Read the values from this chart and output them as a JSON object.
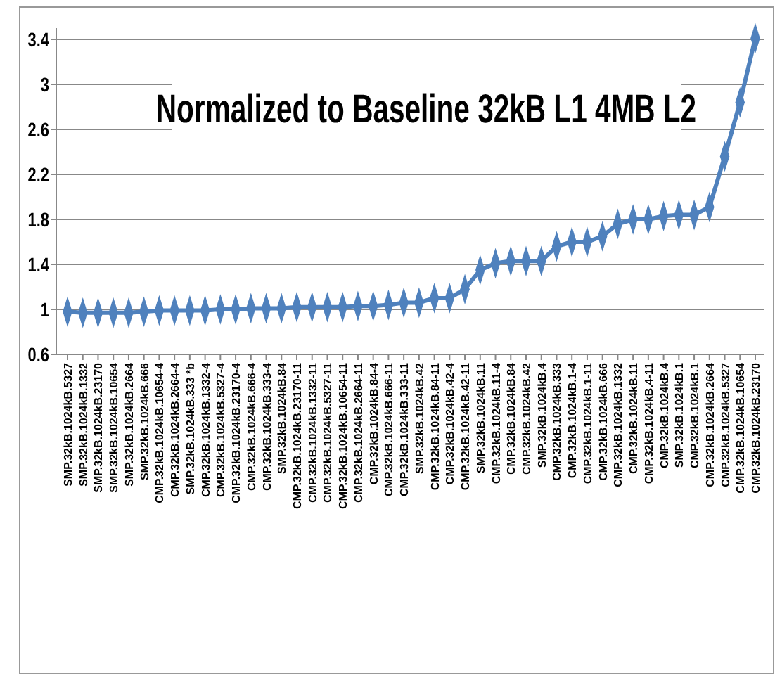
{
  "chart_data": {
    "type": "line",
    "title": "Normalized to Baseline 32kB L1 4MB L2",
    "categories": [
      "SMP.32kB.1024kB.5327",
      "SMP.32kB.1024kB.1332",
      "SMP.32kB.1024kB.23170",
      "SMP.32kB.1024kB.10654",
      "SMP.32kB.1024kB.2664",
      "SMP.32kB.1024kB.666",
      "CMP.32kB.1024kB.10654-4",
      "CMP.32kB.1024kB.2664-4",
      "SMP.32kB.1024kB.333 *b",
      "CMP.32kB.1024kB.1332-4",
      "CMP.32kB.1024kB.5327-4",
      "CMP.32kB.1024kB.23170-4",
      "CMP.32kB.1024kB.666-4",
      "CMP.32kB.1024kB.333-4",
      "SMP.32kB.1024kB.84",
      "CMP.32kB.1024kB.23170-11",
      "CMP.32kB.1024kB.1332-11",
      "CMP.32kB.1024kB.5327-11",
      "CMP.32kB.1024kB.10654-11",
      "CMP.32kB.1024kB.2664-11",
      "CMP.32kB.1024kB.84-4",
      "CMP.32kB.1024kB.666-11",
      "CMP.32kB.1024kB.333-11",
      "SMP.32kB.1024kB.42",
      "CMP.32kB.1024kB.84-11",
      "CMP.32kB.1024kB.42-4",
      "CMP.32kB.1024kB.42-11",
      "SMP.32kB.1024kB.11",
      "CMP.32kB.1024kB.11-4",
      "CMP.32kB.1024kB.84",
      "CMP.32kB.1024kB.42",
      "SMP.32kB.1024kB.4",
      "CMP.32kB.1024kB.333",
      "CMP.32kB.1024kB.1-4",
      "CMP.32kB.1024kB.1-11",
      "CMP.32kB.1024kB.666",
      "CMP.32kB.1024kB.1332",
      "CMP.32kB.1024kB.11",
      "CMP.32kB.1024kB.4-11",
      "CMP.32kB.1024kB.4",
      "SMP.32kB.1024kB.1",
      "CMP.32kB.1024kB.1",
      "CMP.32kB.1024kB.2664",
      "CMP.32kB.1024kB.5327",
      "CMP.32kB.1024kB.10654",
      "CMP.32kB.1024kB.23170"
    ],
    "series": [
      {
        "color": "#4f81bd",
        "values": [
          0.98,
          0.97,
          0.97,
          0.97,
          0.97,
          0.98,
          0.99,
          0.99,
          0.99,
          0.99,
          1.0,
          1.0,
          1.01,
          1.01,
          1.01,
          1.02,
          1.02,
          1.02,
          1.02,
          1.03,
          1.03,
          1.04,
          1.06,
          1.06,
          1.1,
          1.1,
          1.18,
          1.35,
          1.41,
          1.43,
          1.43,
          1.43,
          1.56,
          1.6,
          1.6,
          1.65,
          1.76,
          1.8,
          1.8,
          1.83,
          1.84,
          1.84,
          1.91,
          2.36,
          2.84,
          3.41
        ]
      }
    ],
    "ylim": [
      0.6,
      3.5
    ],
    "yticks": [
      0.6,
      1,
      1.4,
      1.8,
      2.2,
      2.6,
      3,
      3.4
    ],
    "grid": "y",
    "marker": "diamond",
    "line_style": "solid"
  }
}
